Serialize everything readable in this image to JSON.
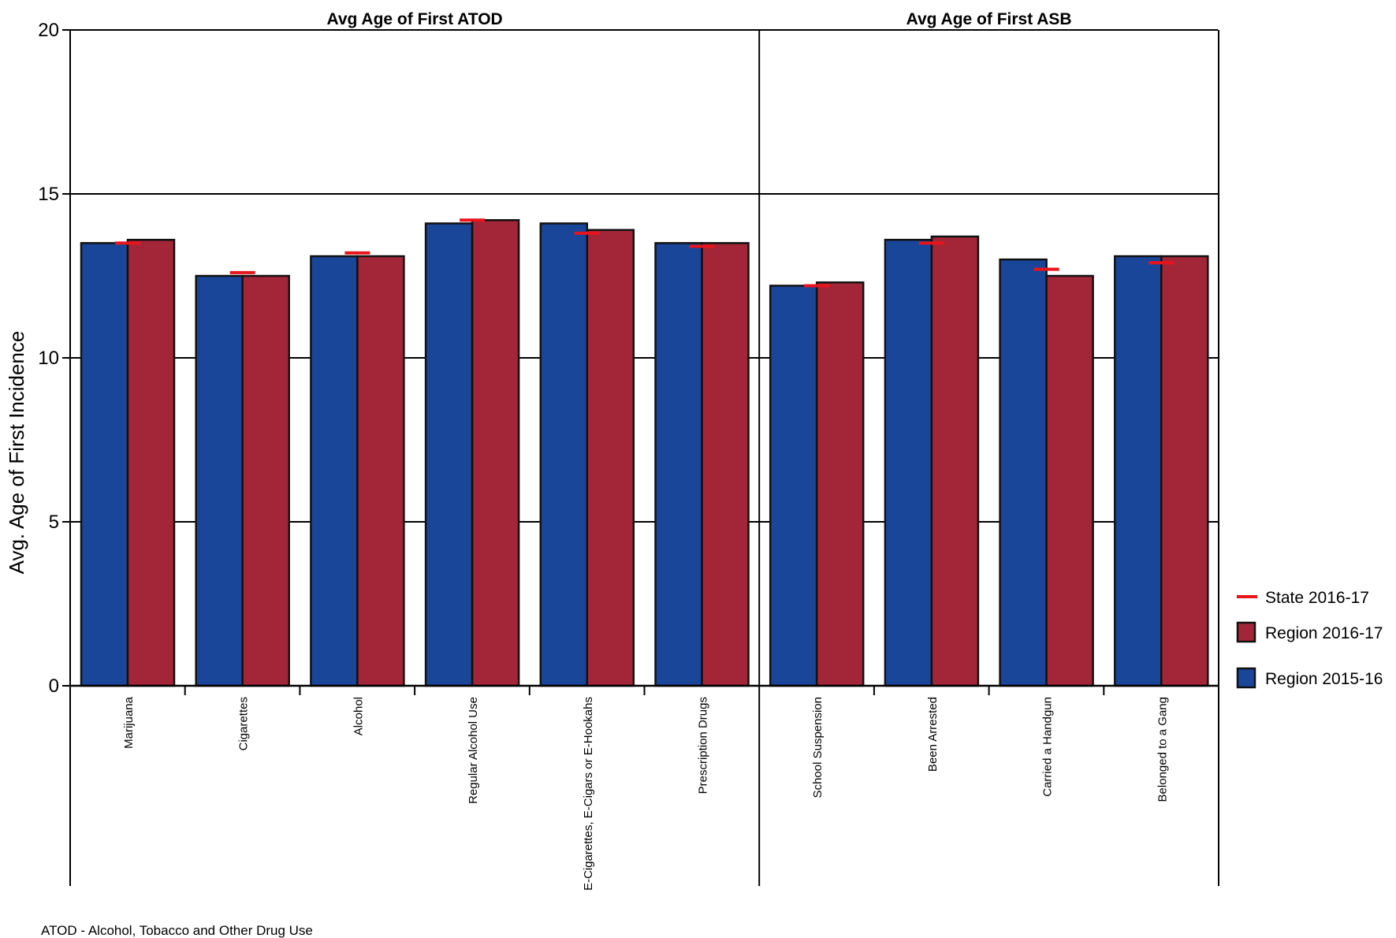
{
  "chart_data": {
    "type": "bar",
    "ylabel": "Avg. Age of First Incidence",
    "ylim": [
      0,
      20
    ],
    "yticks": [
      "0",
      "5",
      "10",
      "15",
      "20"
    ],
    "grid": true,
    "legend_position": "right",
    "facets": [
      {
        "title": "Avg Age of First ATOD",
        "categories": [
          "Marijuana",
          "Cigarettes",
          "Alcohol",
          "Regular Alcohol Use",
          "E-Cigarettes, E-Cigars or E-Hookahs",
          "Prescription Drugs"
        ],
        "series": [
          {
            "name": "Region 2015-16",
            "values": [
              13.5,
              12.5,
              13.1,
              14.1,
              14.1,
              13.5
            ]
          },
          {
            "name": "Region 2016-17",
            "values": [
              13.6,
              12.5,
              13.1,
              14.2,
              13.9,
              13.5
            ]
          },
          {
            "name": "State 2016-17",
            "values": [
              13.5,
              12.6,
              13.2,
              14.2,
              13.8,
              13.4
            ]
          }
        ]
      },
      {
        "title": "Avg Age of First ASB",
        "categories": [
          "School Suspension",
          "Been Arrested",
          "Carried a Handgun",
          "Belonged to a Gang"
        ],
        "series": [
          {
            "name": "Region 2015-16",
            "values": [
              12.2,
              13.6,
              13.0,
              13.1
            ]
          },
          {
            "name": "Region 2016-17",
            "values": [
              12.3,
              13.7,
              12.5,
              13.1
            ]
          },
          {
            "name": "State 2016-17",
            "values": [
              12.2,
              13.5,
              12.7,
              12.9
            ]
          }
        ]
      }
    ],
    "legend": [
      "State 2016-17",
      "Region 2016-17",
      "Region 2015-16"
    ],
    "colors": {
      "Region 2015-16": "#1a4699",
      "Region 2016-17": "#a32638",
      "State 2016-17": "#e8141c"
    },
    "footnote": "ATOD - Alcohol, Tobacco and Other Drug Use"
  }
}
